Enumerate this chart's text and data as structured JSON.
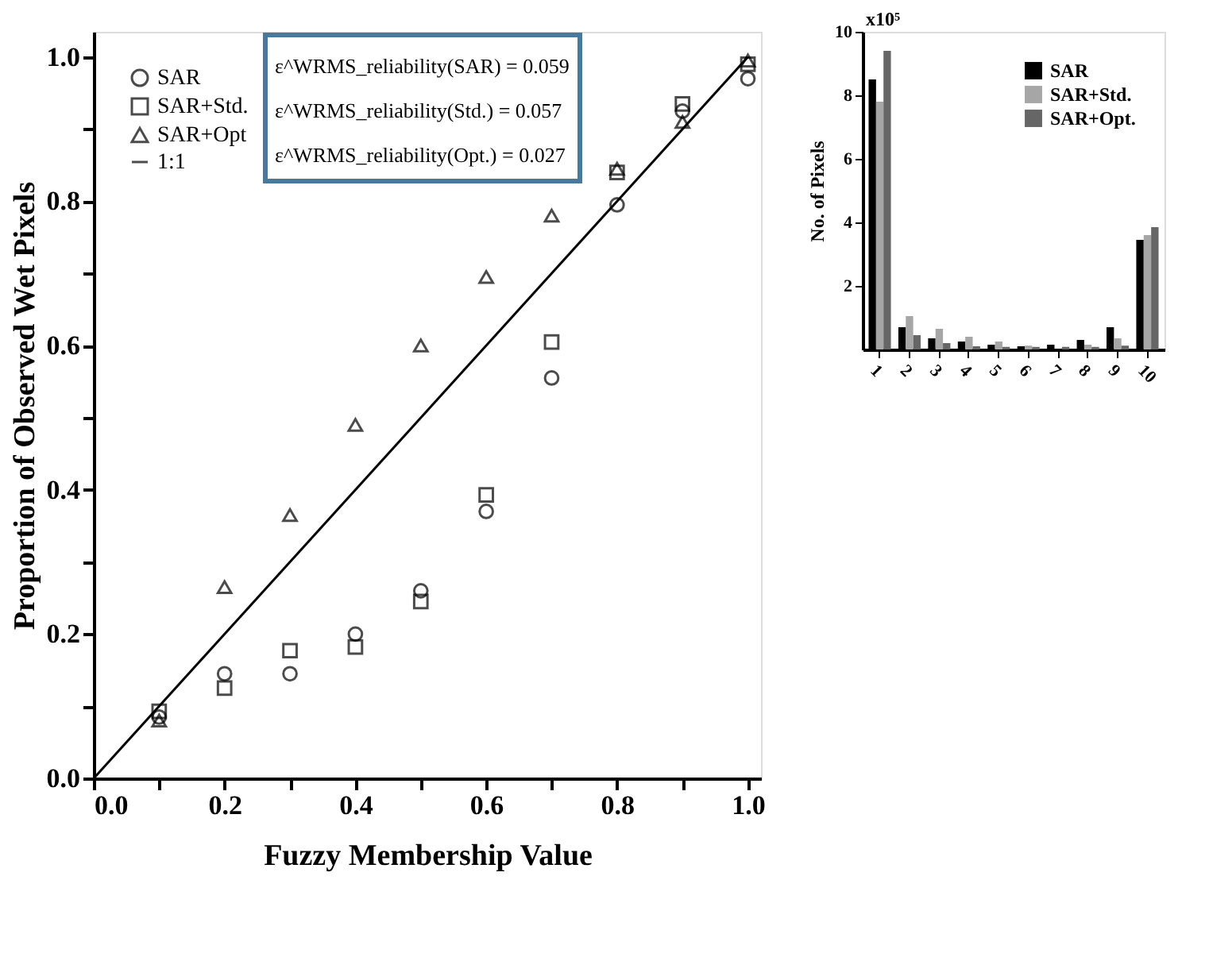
{
  "chart_data": [
    {
      "type": "scatter",
      "xlabel": "Fuzzy Membership Value",
      "ylabel": "Proportion of Observed Wet Pixels",
      "x": [
        0.1,
        0.2,
        0.3,
        0.4,
        0.5,
        0.6,
        0.7,
        0.8,
        0.9,
        1.0
      ],
      "series": [
        {
          "name": "SAR",
          "color": "#000000",
          "marker": "circle",
          "values": [
            0.085,
            0.145,
            0.145,
            0.2,
            0.26,
            0.37,
            0.555,
            0.795,
            0.925,
            0.97
          ]
        },
        {
          "name": "SAR+Std.",
          "color": "#000000",
          "marker": "square",
          "values": [
            0.093,
            0.125,
            0.177,
            0.182,
            0.245,
            0.393,
            0.605,
            0.84,
            0.935,
            0.99
          ]
        },
        {
          "name": "SAR+Opt",
          "color": "#000000",
          "marker": "triangle",
          "values": [
            0.08,
            0.265,
            0.365,
            0.49,
            0.6,
            0.695,
            0.78,
            0.845,
            0.91,
            0.995
          ]
        },
        {
          "name": "1:1",
          "type": "line",
          "color": "#000000",
          "marker": "none",
          "line_style": "solid",
          "x": [
            0,
            1
          ],
          "values": [
            0,
            1
          ]
        }
      ],
      "xlim": [
        0,
        1.02
      ],
      "ylim": [
        0,
        1.035
      ],
      "xticks": [
        {
          "value": 0,
          "label": "0.0"
        },
        {
          "value": 0.1,
          "label": null
        },
        0.2,
        {
          "value": 0.3,
          "label": null
        },
        0.4,
        {
          "value": 0.5,
          "label": null
        },
        0.6,
        {
          "value": 0.7,
          "label": null
        },
        0.8,
        {
          "value": 0.9,
          "label": null
        },
        {
          "value": 1,
          "label": "1.0"
        }
      ],
      "yticks": [
        {
          "value": 0,
          "label": "0.0"
        },
        {
          "value": 0.1,
          "label": null
        },
        0.2,
        {
          "value": 0.3,
          "label": null
        },
        0.4,
        {
          "value": 0.5,
          "label": null
        },
        0.6,
        {
          "value": 0.7,
          "label": null
        },
        0.8,
        {
          "value": 0.9,
          "label": null
        },
        {
          "value": 1,
          "label": "1.0"
        }
      ],
      "grid": false,
      "legend": "top left",
      "annotations": [
        "ε^WRMS_reliability(SAR) = 0.059",
        "ε^WRMS_reliability(Std.) = 0.057",
        "ε^WRMS_reliability(Opt.) = 0.027"
      ]
    },
    {
      "type": "bar",
      "ylabel": "No. of Pixels",
      "categories": [
        "1",
        "2",
        "3",
        "4",
        "5",
        "6",
        "7",
        "8",
        "9",
        "10"
      ],
      "series": [
        {
          "name": "SAR",
          "color": "#000000",
          "values": [
            8.5,
            0.7,
            0.35,
            0.25,
            0.15,
            0.1,
            0.15,
            0.3,
            0.7,
            3.45
          ]
        },
        {
          "name": "SAR+Std.",
          "color": "#a6a6a6",
          "values": [
            7.8,
            1.05,
            0.65,
            0.4,
            0.25,
            0.12,
            null,
            0.15,
            0.35,
            3.6
          ]
        },
        {
          "name": "SAR+Opt.",
          "color": "#666666",
          "values": [
            9.4,
            0.45,
            0.2,
            0.1,
            0.08,
            0.08,
            0.08,
            0.08,
            0.12,
            3.85
          ]
        }
      ],
      "ylim": [
        0,
        10
      ],
      "yticks": [
        2,
        4,
        6,
        8,
        10
      ],
      "grid": false,
      "legend": "top right",
      "annotations": [
        "x10⁵"
      ]
    }
  ]
}
